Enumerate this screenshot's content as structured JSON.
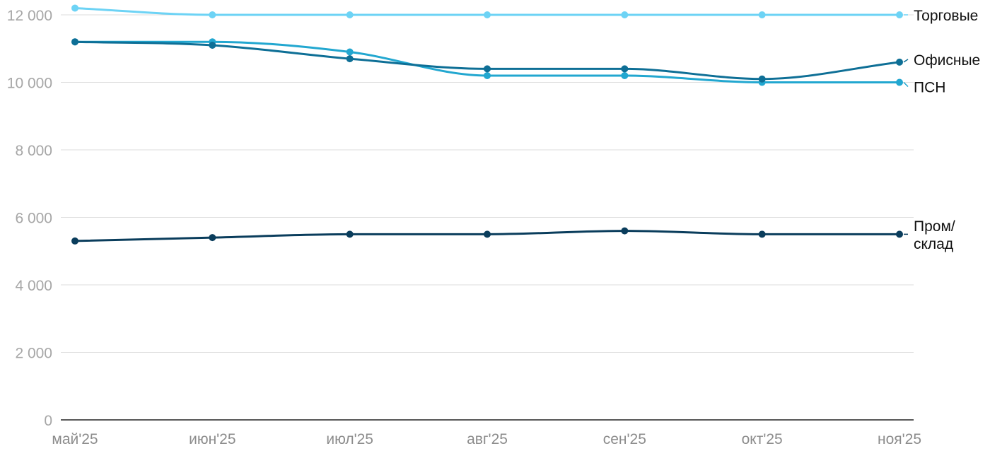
{
  "chart_data": {
    "type": "line",
    "categories": [
      "май'25",
      "июн'25",
      "июл'25",
      "авг'25",
      "сен'25",
      "окт'25",
      "ноя'25"
    ],
    "ylim": [
      0,
      12000
    ],
    "yticks": [
      0,
      2000,
      4000,
      6000,
      8000,
      10000,
      12000
    ],
    "ytick_labels": [
      "0",
      "2 000",
      "4 000",
      "6 000",
      "8 000",
      "10 000",
      "12 000"
    ],
    "grid": true,
    "legend": "inline-right",
    "series": [
      {
        "name": "Торговые",
        "label_lines": [
          "Торговые"
        ],
        "color": "#6dd3f5",
        "values": [
          12200,
          12000,
          12000,
          12000,
          12000,
          12000,
          12000
        ]
      },
      {
        "name": "ПСН",
        "label_lines": [
          "ПСН"
        ],
        "color": "#22a7d0",
        "values": [
          11200,
          11200,
          10900,
          10200,
          10200,
          10000,
          10000
        ]
      },
      {
        "name": "Офисные",
        "label_lines": [
          "Офисные"
        ],
        "color": "#0e6f96",
        "values": [
          11200,
          11100,
          10700,
          10400,
          10400,
          10100,
          10600
        ]
      },
      {
        "name": "Пром/склад",
        "label_lines": [
          "Пром/",
          "склад"
        ],
        "color": "#0a3d5c",
        "values": [
          5300,
          5400,
          5500,
          5500,
          5600,
          5500,
          5500
        ]
      }
    ]
  }
}
